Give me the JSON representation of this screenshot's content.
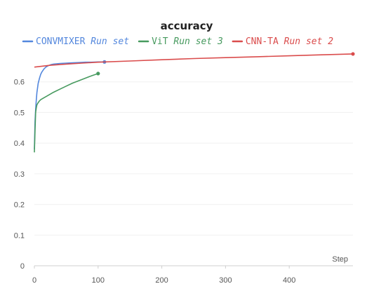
{
  "chart_data": {
    "type": "line",
    "title": "accuracy",
    "xlabel": "Step",
    "ylabel": "",
    "xlim": [
      0,
      500
    ],
    "ylim": [
      0,
      0.7
    ],
    "xticks": [
      "0",
      "100",
      "200",
      "300",
      "400"
    ],
    "yticks": [
      "0",
      "0.1",
      "0.2",
      "0.3",
      "0.4",
      "0.5",
      "0.6"
    ],
    "grid": true,
    "legend_position": "top",
    "series": [
      {
        "name": "CONVMIXER",
        "run": "Run set",
        "color": "#5387dd",
        "x": [
          0,
          1,
          2,
          3,
          4,
          5,
          6,
          8,
          10,
          12,
          15,
          18,
          22,
          26,
          30,
          40,
          50,
          60,
          70,
          80,
          90,
          100,
          110
        ],
        "y": [
          0.38,
          0.47,
          0.51,
          0.54,
          0.565,
          0.58,
          0.595,
          0.612,
          0.625,
          0.633,
          0.642,
          0.648,
          0.653,
          0.656,
          0.658,
          0.66,
          0.661,
          0.662,
          0.663,
          0.664,
          0.664,
          0.665,
          0.665
        ]
      },
      {
        "name": "ViT",
        "run": "Run set 3",
        "color": "#479a5f",
        "x": [
          0,
          1,
          2,
          3,
          4,
          6,
          8,
          10,
          15,
          20,
          25,
          30,
          40,
          50,
          60,
          70,
          80,
          90,
          100
        ],
        "y": [
          0.37,
          0.44,
          0.5,
          0.515,
          0.525,
          0.532,
          0.538,
          0.542,
          0.548,
          0.554,
          0.56,
          0.566,
          0.576,
          0.586,
          0.596,
          0.604,
          0.612,
          0.62,
          0.627
        ]
      },
      {
        "name": "CNN-TA",
        "run": "Run set 2",
        "color": "#da4c4c",
        "x": [
          0,
          25,
          50,
          75,
          100,
          150,
          200,
          250,
          300,
          350,
          400,
          450,
          500
        ],
        "y": [
          0.648,
          0.654,
          0.658,
          0.661,
          0.664,
          0.668,
          0.672,
          0.676,
          0.679,
          0.682,
          0.685,
          0.688,
          0.691
        ]
      }
    ]
  }
}
